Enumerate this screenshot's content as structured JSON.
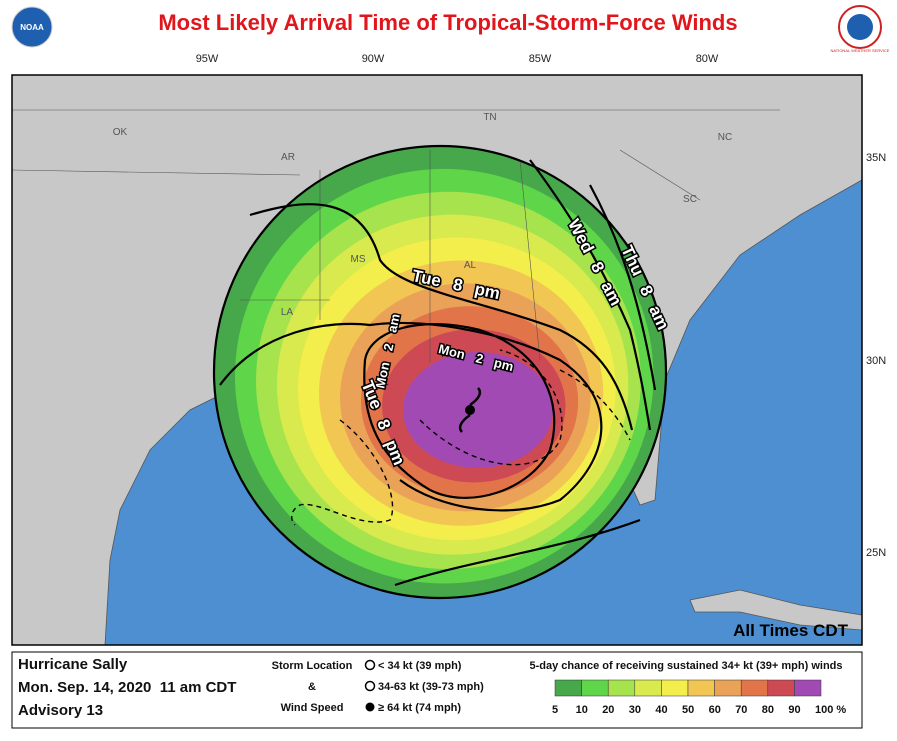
{
  "header": {
    "title": "Most Likely Arrival Time of Tropical-Storm-Force Winds"
  },
  "logos": {
    "noaa": "NOAA",
    "nws": "NATIONAL WEATHER SERVICE"
  },
  "map": {
    "longitudes": [
      "95W",
      "90W",
      "85W",
      "80W"
    ],
    "latitudes": [
      "35N",
      "30N",
      "25N"
    ],
    "states": [
      "OK",
      "TN",
      "NC",
      "AR",
      "SC",
      "MS",
      "AL",
      "LA"
    ],
    "time_labels": [
      "Tue 8 pm",
      "Wed 8 am",
      "Thu 8 am",
      "Mon 2 am",
      "Mon 2 pm",
      "Tue 8 pm"
    ],
    "note": "All Times CDT"
  },
  "footer": {
    "storm": "Hurricane Sally",
    "date": "Mon. Sep. 14, 2020  11 am CDT",
    "advisory": "Advisory 13",
    "key_title_1": "Storm Location",
    "key_amp": "&",
    "key_title_2": "Wind Speed",
    "keys": [
      "< 34 kt (39 mph)",
      "34-63 kt (39-73 mph)",
      "≥ 64 kt (74 mph)"
    ],
    "legend_title": "5-day chance of receiving sustained 34+ kt (39+ mph) winds",
    "legend_colors": [
      "#46a84a",
      "#5fd54a",
      "#a6e34c",
      "#d8ea4d",
      "#f3ee4b",
      "#f2c653",
      "#e9a257",
      "#e2744a",
      "#cd4a55",
      "#a14ab4"
    ],
    "legend_labels": [
      "5",
      "10",
      "20",
      "30",
      "40",
      "50",
      "60",
      "70",
      "80",
      "90",
      "100 %"
    ]
  }
}
